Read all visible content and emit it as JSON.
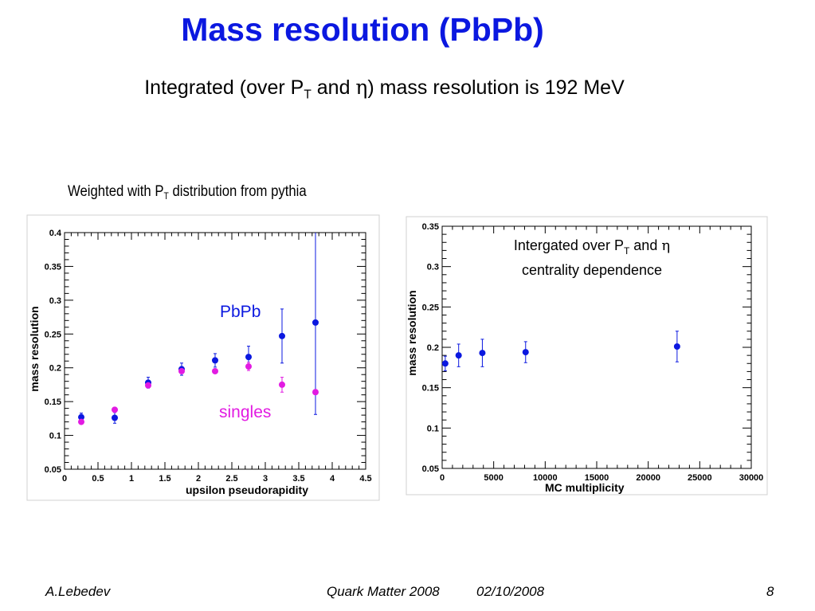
{
  "slide": {
    "title": "Mass resolution (PbPb)",
    "subtitle_pre": "Integrated (over P",
    "subtitle_sub": "T",
    "subtitle_mid": " and ",
    "subtitle_eta": "η",
    "subtitle_post": ") mass resolution is 192 MeV"
  },
  "chart1_caption": {
    "pre": "Weighted with P",
    "sub": "T",
    "post": " distribution from pythia"
  },
  "chart_data": [
    {
      "type": "scatter",
      "title": "",
      "xlabel": "upsilon pseudorapidity",
      "ylabel": "mass resolution",
      "xlim": [
        0,
        4.5
      ],
      "ylim": [
        0.05,
        0.4
      ],
      "x_ticks": [
        "0",
        "0.5",
        "1",
        "1.5",
        "2",
        "2.5",
        "3",
        "3.5",
        "4",
        "4.5"
      ],
      "y_ticks": [
        "0.05",
        "0.1",
        "0.15",
        "0.2",
        "0.25",
        "0.3",
        "0.35",
        "0.4"
      ],
      "grid": false,
      "series": [
        {
          "name": "PbPb",
          "color": "#0b18e0",
          "x": [
            0.25,
            0.75,
            1.25,
            1.75,
            2.25,
            2.75,
            3.25,
            3.75
          ],
          "y": [
            0.127,
            0.126,
            0.178,
            0.198,
            0.211,
            0.216,
            0.247,
            0.267
          ],
          "err": [
            0.006,
            0.008,
            0.008,
            0.009,
            0.01,
            0.016,
            0.04,
            0.136
          ]
        },
        {
          "name": "singles",
          "color": "#e21be2",
          "x": [
            0.25,
            0.75,
            1.25,
            1.75,
            2.25,
            2.75,
            3.25,
            3.75
          ],
          "y": [
            0.12,
            0.138,
            0.174,
            0.195,
            0.195,
            0.202,
            0.175,
            0.164
          ],
          "err": [
            0,
            0,
            0,
            0,
            0,
            0.006,
            0.011,
            0
          ]
        }
      ],
      "legend": {
        "pbpb_label": "PbPb",
        "singles_label": "singles"
      }
    },
    {
      "type": "scatter",
      "title": "",
      "xlabel": "MC multiplicity",
      "ylabel": "mass resolution",
      "xlim": [
        0,
        30000
      ],
      "ylim": [
        0.05,
        0.35
      ],
      "x_ticks": [
        "0",
        "5000",
        "10000",
        "15000",
        "20000",
        "25000",
        "30000"
      ],
      "y_ticks": [
        "0.05",
        "0.1",
        "0.15",
        "0.2",
        "0.25",
        "0.3",
        "0.35"
      ],
      "grid": false,
      "annotation": {
        "line1_pre": "Intergated over P",
        "line1_sub": "T",
        "line1_mid": " and ",
        "line1_eta": "η",
        "line2": "centrality dependence"
      },
      "series": [
        {
          "color": "#0b18e0",
          "x": [
            300,
            1600,
            3900,
            8100,
            22800
          ],
          "y": [
            0.18,
            0.19,
            0.193,
            0.194,
            0.201
          ],
          "err": [
            0.009,
            0.014,
            0.017,
            0.013,
            0.019
          ]
        }
      ]
    }
  ],
  "footer": {
    "author": "A.Lebedev",
    "conference": "Quark Matter 2008",
    "date": "02/10/2008",
    "page": "8"
  }
}
